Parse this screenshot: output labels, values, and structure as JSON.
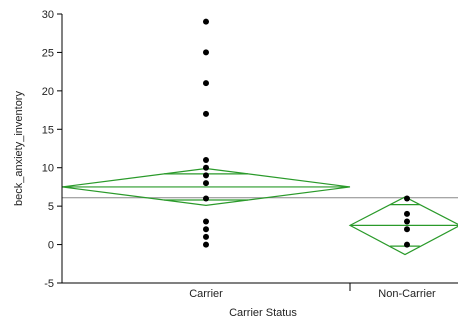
{
  "chart_data": {
    "type": "scatter",
    "xlabel": "Carrier Status",
    "ylabel": "beck_anxiety_inventory",
    "categories": [
      "Carrier",
      "Non-Carrier"
    ],
    "ylim": [
      -5,
      30
    ],
    "yticks": [
      -5,
      0,
      5,
      10,
      15,
      20,
      25,
      30
    ],
    "grand_mean": 6.1,
    "series": [
      {
        "category": "Carrier",
        "values": [
          29,
          25,
          21,
          17,
          11,
          10,
          9,
          8,
          6,
          3,
          2,
          1,
          0
        ]
      },
      {
        "category": "Non-Carrier",
        "values": [
          6,
          4,
          3,
          2,
          0
        ]
      }
    ],
    "means_diamonds": [
      {
        "category": "Carrier",
        "mean": 7.5,
        "lower_ci": 5.1,
        "upper_ci": 9.9,
        "overlap_upper": 9.2,
        "overlap_lower": 5.8
      },
      {
        "category": "Non-Carrier",
        "mean": 2.5,
        "lower_ci": -1.3,
        "upper_ci": 6.2,
        "overlap_upper": 5.2,
        "overlap_lower": -0.2
      }
    ],
    "colors": {
      "points": "#000000",
      "diamond": "#2a9a2a",
      "grand_mean_line": "#888888",
      "axis": "#000000"
    },
    "grid": false,
    "legend": "none"
  }
}
